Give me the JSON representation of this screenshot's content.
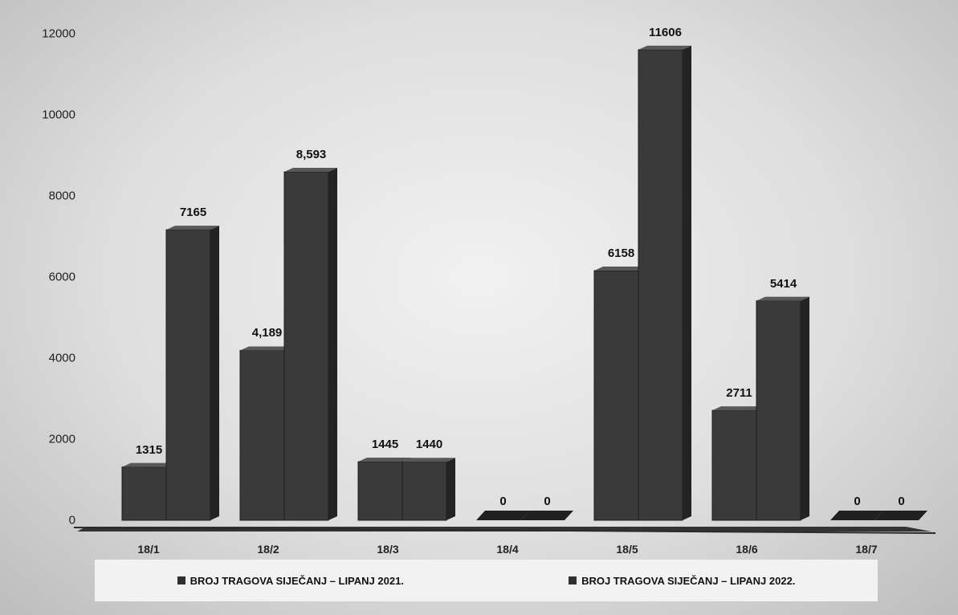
{
  "chart_data": {
    "type": "bar",
    "categories": [
      "18/1",
      "18/2",
      "18/3",
      "18/4",
      "18/5",
      "18/6",
      "18/7"
    ],
    "series": [
      {
        "name": "BROJ TRAGOVA SIJEČANJ – LIPANJ 2021.",
        "values": [
          1315,
          4189,
          1445,
          0,
          6158,
          2711,
          0
        ],
        "labels": [
          "1315",
          "4,189",
          "1445",
          "0",
          "6158",
          "2711",
          "0"
        ]
      },
      {
        "name": "BROJ TRAGOVA SIJEČANJ – LIPANJ 2022.",
        "values": [
          7165,
          8593,
          1440,
          0,
          11606,
          5414,
          0
        ],
        "labels": [
          "7165",
          "8,593",
          "1440",
          "0",
          "11606",
          "5414",
          "0"
        ]
      }
    ],
    "ylim": [
      0,
      12000
    ],
    "yticks": [
      "0",
      "2000",
      "4000",
      "6000",
      "8000",
      "10000",
      "12000"
    ],
    "legend_position": "bottom",
    "grid": false,
    "colors": {
      "bar": "#3a3a3a",
      "bar_side": "#232323",
      "bar_top": "#595959",
      "floor": "#333333"
    }
  }
}
